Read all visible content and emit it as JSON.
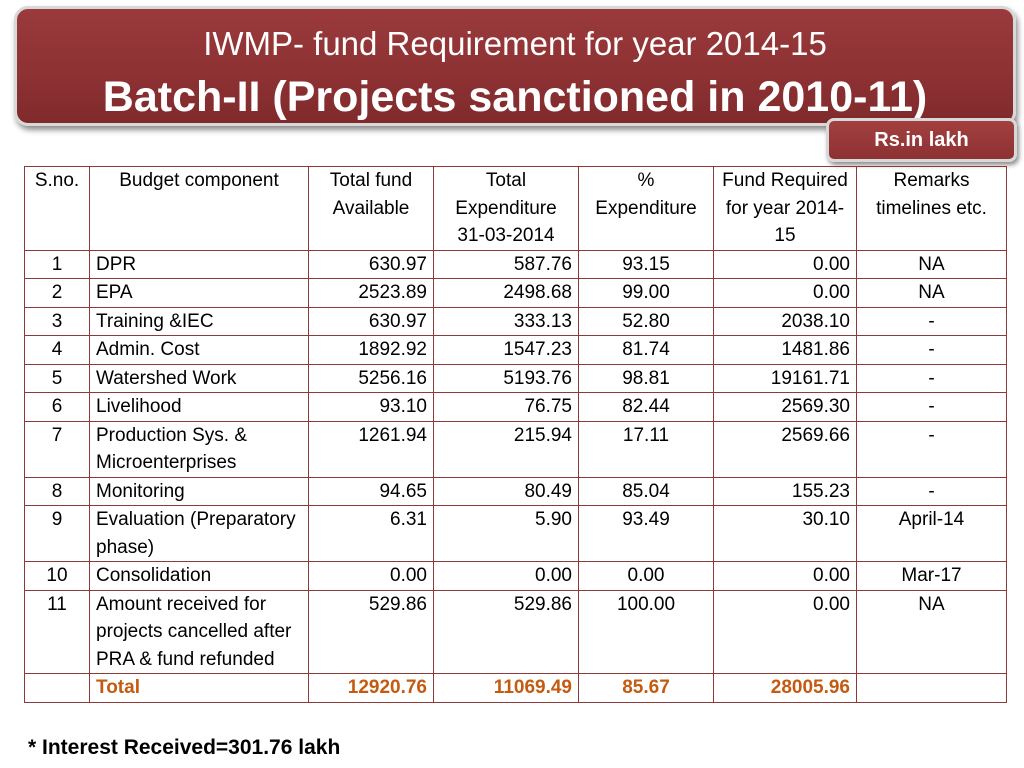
{
  "title": {
    "line1": "IWMP- fund Requirement for year 2014-15",
    "line2": "Batch-II (Projects sanctioned in 2010-11)"
  },
  "unit_label": "Rs.in lakh",
  "table": {
    "headers": [
      "S.no.",
      "Budget  component",
      "Total fund Available",
      "Total Expenditure 31-03-2014",
      "% Expenditure",
      "Fund Required for year 2014-15",
      "Remarks timelines etc."
    ],
    "rows": [
      [
        "1",
        "DPR",
        "630.97",
        "587.76",
        "93.15",
        "0.00",
        "NA"
      ],
      [
        "2",
        "EPA",
        "2523.89",
        "2498.68",
        "99.00",
        "0.00",
        "NA"
      ],
      [
        "3",
        "Training &IEC",
        "630.97",
        "333.13",
        "52.80",
        "2038.10",
        "-"
      ],
      [
        "4",
        "Admin. Cost",
        "1892.92",
        "1547.23",
        "81.74",
        "1481.86",
        "-"
      ],
      [
        "5",
        "Watershed Work",
        "5256.16",
        "5193.76",
        "98.81",
        "19161.71",
        "-"
      ],
      [
        "6",
        "Livelihood",
        "93.10",
        "76.75",
        "82.44",
        "2569.30",
        "-"
      ],
      [
        "7",
        "Production Sys. & Microenterprises",
        "1261.94",
        "215.94",
        "17.11",
        "2569.66",
        "-"
      ],
      [
        "8",
        "Monitoring",
        "94.65",
        "80.49",
        "85.04",
        "155.23",
        "-"
      ],
      [
        "9",
        "Evaluation (Preparatory phase)",
        "6.31",
        "5.90",
        "93.49",
        "30.10",
        "April-14"
      ],
      [
        "10",
        "Consolidation",
        "0.00",
        "0.00",
        "0.00",
        "0.00",
        "Mar-17"
      ],
      [
        "11",
        "Amount received for projects cancelled after PRA  & fund refunded",
        "529.86",
        "529.86",
        "100.00",
        "0.00",
        "NA"
      ]
    ],
    "total": [
      "",
      "Total",
      "12920.76",
      "11069.49",
      "85.67",
      "28005.96",
      ""
    ]
  },
  "footnote": "* Interest Received=301.76 lakh",
  "colors": {
    "title_bg": "#8d3133",
    "border": "#8e3a3a",
    "total_text": "#c55a11"
  }
}
